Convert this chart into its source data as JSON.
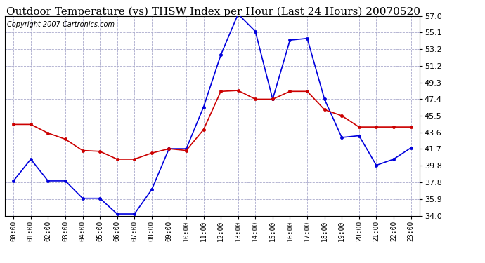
{
  "title": "Outdoor Temperature (vs) THSW Index per Hour (Last 24 Hours) 20070520",
  "copyright": "Copyright 2007 Cartronics.com",
  "hours": [
    "00:00",
    "01:00",
    "02:00",
    "03:00",
    "04:00",
    "05:00",
    "06:00",
    "07:00",
    "08:00",
    "09:00",
    "10:00",
    "11:00",
    "12:00",
    "13:00",
    "14:00",
    "15:00",
    "16:00",
    "17:00",
    "18:00",
    "19:00",
    "20:00",
    "21:00",
    "22:00",
    "23:00"
  ],
  "temp_blue": [
    38.0,
    40.5,
    38.0,
    38.0,
    36.0,
    36.0,
    34.2,
    34.2,
    37.0,
    41.7,
    41.7,
    46.5,
    52.5,
    57.2,
    55.2,
    47.4,
    54.2,
    54.4,
    47.4,
    43.0,
    43.2,
    39.8,
    40.5,
    41.8
  ],
  "thsw_red": [
    44.5,
    44.5,
    43.5,
    42.8,
    41.5,
    41.4,
    40.5,
    40.5,
    41.2,
    41.7,
    41.5,
    43.9,
    48.3,
    48.4,
    47.4,
    47.4,
    48.3,
    48.3,
    46.2,
    45.5,
    44.2,
    44.2,
    44.2,
    44.2
  ],
  "ylim": [
    34.0,
    57.0
  ],
  "yticks": [
    34.0,
    35.9,
    37.8,
    39.8,
    41.7,
    43.6,
    45.5,
    47.4,
    49.3,
    51.2,
    53.2,
    55.1,
    57.0
  ],
  "blue_color": "#0000dd",
  "red_color": "#cc0000",
  "bg_color": "#ffffff",
  "grid_color": "#aaaacc",
  "title_fontsize": 11,
  "copyright_fontsize": 7
}
